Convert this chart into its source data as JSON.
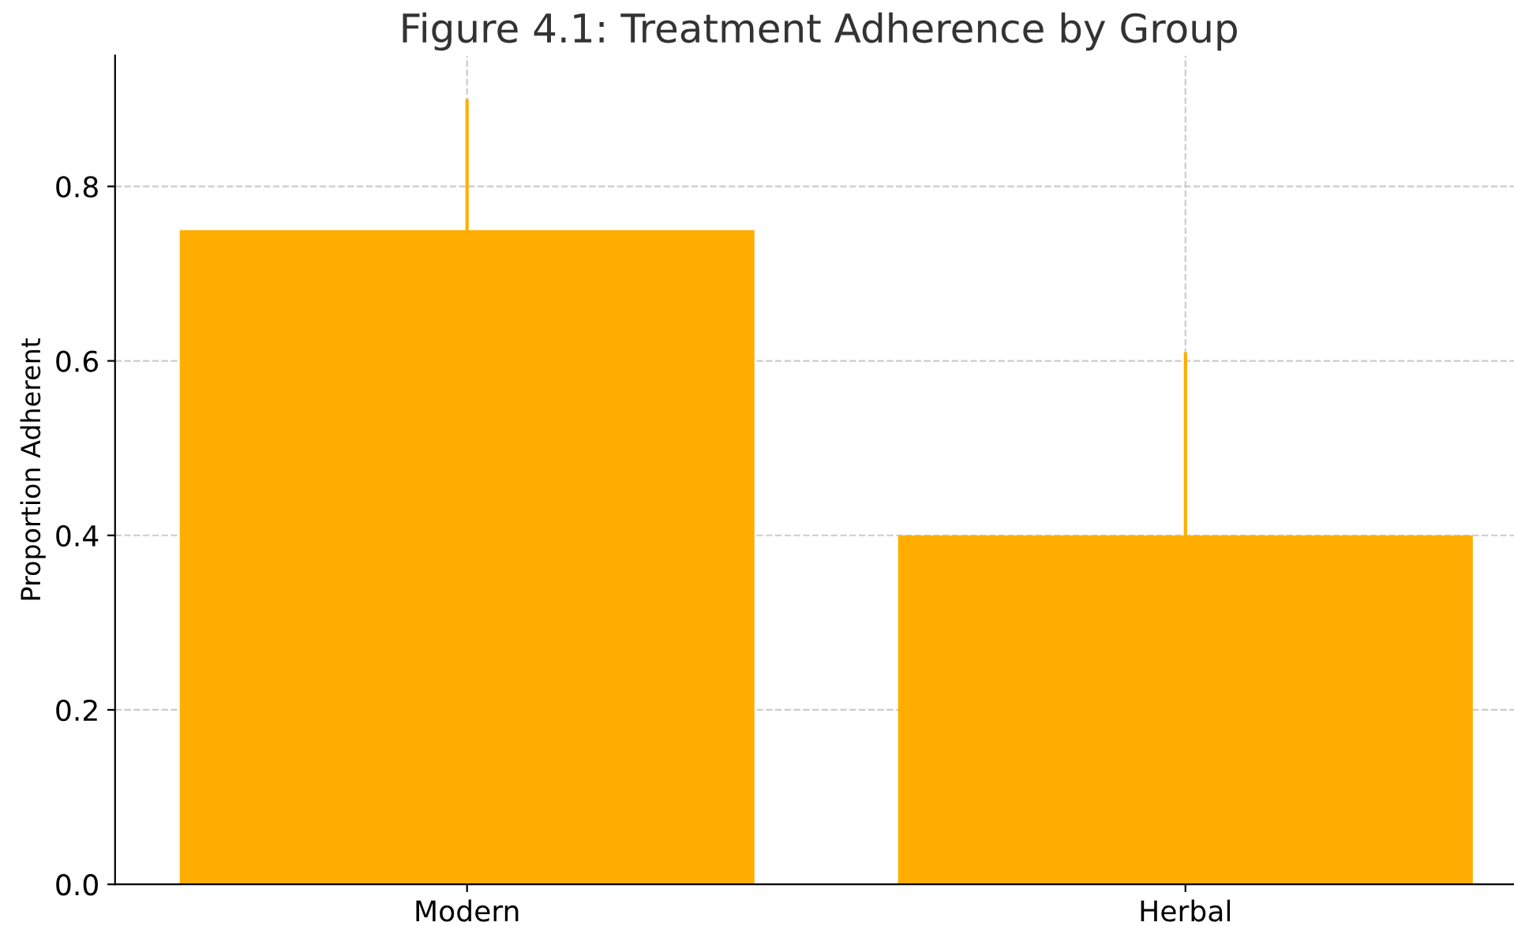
{
  "chart_data": {
    "type": "bar",
    "title": "Figure 4.1: Treatment Adherence by Group",
    "ylabel": "Proportion Adherent",
    "categories": [
      "Modern",
      "Herbal"
    ],
    "values": [
      0.75,
      0.4
    ],
    "errors": [
      0.15,
      0.21
    ],
    "color": "#ffae00",
    "ylim": [
      0,
      0.95
    ],
    "yticks": [
      {
        "value": 0,
        "label": "0.0"
      },
      0.2,
      0.4,
      0.6,
      0.8
    ],
    "grid": true
  }
}
